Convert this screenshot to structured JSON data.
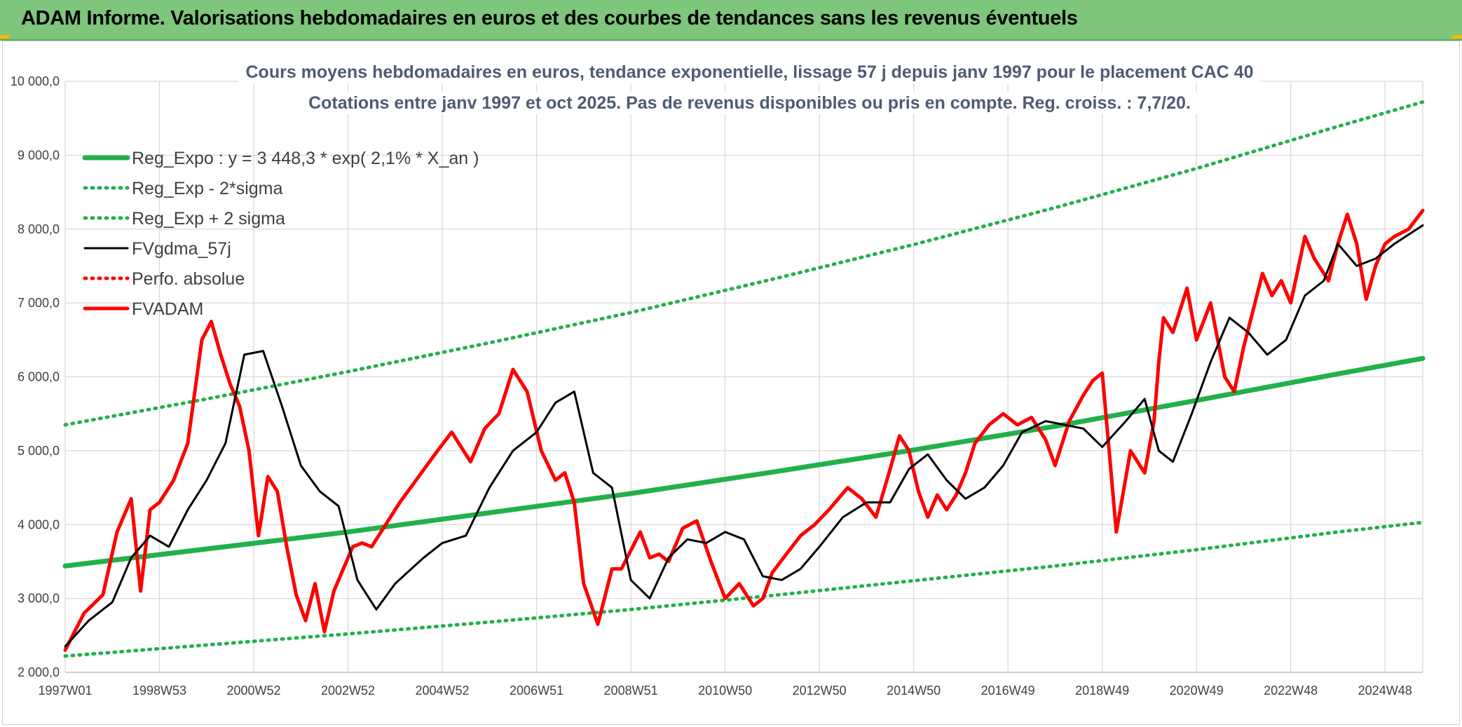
{
  "banner": {
    "title": "ADAM Informe. Valorisations hebdomadaires en euros et des courbes de tendances sans les revenus éventuels",
    "background": "#7dc67b"
  },
  "chart_data": {
    "type": "line",
    "title": "Cours moyens hebdomadaires en euros, tendance exponentielle, lissage 57 j depuis janv 1997 pour le placement CAC 40",
    "subtitle": "Cotations entre janv 1997 et oct 2025. Pas de revenus disponibles ou pris en compte. Reg. croiss. : 7,7/20.",
    "xlabel": "",
    "ylabel": "",
    "ylim": [
      2000,
      10000
    ],
    "yticks": [
      2000,
      3000,
      4000,
      5000,
      6000,
      7000,
      8000,
      9000,
      10000
    ],
    "ytick_labels": [
      "2 000,0",
      "3 000,0",
      "4 000,0",
      "5 000,0",
      "6 000,0",
      "7 000,0",
      "8 000,0",
      "9 000,0",
      "10 000,0"
    ],
    "xlim": [
      1997.0,
      2025.8
    ],
    "xtick_labels": [
      "1997W01",
      "1998W53",
      "2000W52",
      "2002W52",
      "2004W52",
      "2006W51",
      "2008W51",
      "2010W50",
      "2012W50",
      "2014W50",
      "2016W49",
      "2018W49",
      "2020W49",
      "2022W48",
      "2024W48"
    ],
    "xtick_positions": [
      1997.0,
      1999.0,
      2001.0,
      2003.0,
      2005.0,
      2007.0,
      2009.0,
      2011.0,
      2013.0,
      2015.0,
      2017.0,
      2019.0,
      2021.0,
      2023.0,
      2025.0
    ],
    "grid": true,
    "legend_placement": "top-left",
    "series": [
      {
        "name": "Reg_Expo : y = 3 448,3 * exp( 2,1% *  X_an )",
        "color": "#22b04b",
        "style": "solid-thick",
        "x": [
          1997.0,
          2000.0,
          2003.0,
          2006.0,
          2009.0,
          2012.0,
          2015.0,
          2018.0,
          2021.0,
          2024.0,
          2025.8
        ],
        "values": [
          3440,
          3670,
          3900,
          4160,
          4420,
          4710,
          5010,
          5330,
          5680,
          6040,
          6250
        ]
      },
      {
        "name": "Reg_Exp - 2*sigma",
        "color": "#22b04b",
        "style": "dotted",
        "x": [
          1997.0,
          2000.0,
          2003.0,
          2006.0,
          2009.0,
          2012.0,
          2015.0,
          2018.0,
          2021.0,
          2024.0,
          2025.8
        ],
        "values": [
          2220,
          2370,
          2520,
          2680,
          2850,
          3040,
          3240,
          3440,
          3660,
          3900,
          4030
        ]
      },
      {
        "name": "Reg_Exp + 2 sigma",
        "color": "#22b04b",
        "style": "dotted",
        "x": [
          1997.0,
          2000.0,
          2003.0,
          2006.0,
          2009.0,
          2012.0,
          2015.0,
          2018.0,
          2021.0,
          2024.0,
          2025.8
        ],
        "values": [
          5350,
          5700,
          6070,
          6460,
          6870,
          7320,
          7790,
          8290,
          8820,
          9390,
          9720
        ]
      },
      {
        "name": "FVgdma_57j",
        "color": "#000000",
        "style": "solid",
        "x": [
          1997.0,
          1997.5,
          1998.0,
          1998.4,
          1998.8,
          1999.2,
          1999.6,
          2000.0,
          2000.4,
          2000.8,
          2001.2,
          2001.6,
          2002.0,
          2002.4,
          2002.8,
          2003.2,
          2003.6,
          2004.0,
          2004.6,
          2005.0,
          2005.5,
          2006.0,
          2006.5,
          2007.0,
          2007.4,
          2007.8,
          2008.2,
          2008.6,
          2009.0,
          2009.4,
          2009.8,
          2010.2,
          2010.6,
          2011.0,
          2011.4,
          2011.8,
          2012.2,
          2012.6,
          2013.0,
          2013.5,
          2014.0,
          2014.5,
          2014.9,
          2015.3,
          2015.7,
          2016.1,
          2016.5,
          2016.9,
          2017.3,
          2017.8,
          2018.2,
          2018.6,
          2019.0,
          2019.5,
          2019.9,
          2020.2,
          2020.5,
          2020.9,
          2021.3,
          2021.7,
          2022.1,
          2022.5,
          2022.9,
          2023.3,
          2023.7,
          2024.0,
          2024.4,
          2024.8,
          2025.2,
          2025.8
        ],
        "values": [
          2350,
          2700,
          2950,
          3550,
          3850,
          3700,
          4200,
          4600,
          5100,
          6300,
          6350,
          5600,
          4800,
          4450,
          4250,
          3250,
          2850,
          3200,
          3550,
          3750,
          3850,
          4500,
          5000,
          5250,
          5650,
          5800,
          4700,
          4500,
          3250,
          3000,
          3550,
          3800,
          3750,
          3900,
          3800,
          3300,
          3250,
          3400,
          3700,
          4100,
          4300,
          4300,
          4750,
          4950,
          4600,
          4350,
          4500,
          4800,
          5250,
          5400,
          5350,
          5300,
          5050,
          5400,
          5700,
          5000,
          4850,
          5500,
          6200,
          6800,
          6600,
          6300,
          6500,
          7100,
          7300,
          7800,
          7500,
          7600,
          7800,
          8050
        ]
      },
      {
        "name": "Perfo. absolue",
        "color": "#ff0000",
        "style": "dotted",
        "x": [],
        "values": []
      },
      {
        "name": "FVADAM",
        "color": "#ff0000",
        "style": "solid-thick",
        "x": [
          1997.0,
          1997.4,
          1997.8,
          1998.1,
          1998.4,
          1998.6,
          1998.8,
          1999.0,
          1999.3,
          1999.6,
          1999.9,
          2000.1,
          2000.3,
          2000.5,
          2000.7,
          2000.9,
          2001.1,
          2001.3,
          2001.5,
          2001.7,
          2001.9,
          2002.1,
          2002.3,
          2002.5,
          2002.7,
          2002.9,
          2003.1,
          2003.3,
          2003.5,
          2003.8,
          2004.1,
          2004.5,
          2004.9,
          2005.2,
          2005.6,
          2005.9,
          2006.2,
          2006.5,
          2006.8,
          2007.1,
          2007.4,
          2007.6,
          2007.8,
          2008.0,
          2008.3,
          2008.6,
          2008.8,
          2009.0,
          2009.2,
          2009.4,
          2009.6,
          2009.8,
          2010.1,
          2010.4,
          2010.7,
          2011.0,
          2011.3,
          2011.6,
          2011.8,
          2012.0,
          2012.3,
          2012.6,
          2012.9,
          2013.2,
          2013.6,
          2013.9,
          2014.2,
          2014.5,
          2014.7,
          2014.9,
          2015.1,
          2015.3,
          2015.5,
          2015.7,
          2015.9,
          2016.1,
          2016.3,
          2016.6,
          2016.9,
          2017.2,
          2017.5,
          2017.8,
          2018.0,
          2018.3,
          2018.6,
          2018.8,
          2019.0,
          2019.3,
          2019.6,
          2019.9,
          2020.1,
          2020.2,
          2020.3,
          2020.5,
          2020.8,
          2021.0,
          2021.3,
          2021.6,
          2021.8,
          2022.0,
          2022.2,
          2022.4,
          2022.6,
          2022.8,
          2023.0,
          2023.3,
          2023.5,
          2023.8,
          2024.0,
          2024.2,
          2024.4,
          2024.6,
          2024.8,
          2025.0,
          2025.2,
          2025.5,
          2025.8
        ],
        "values": [
          2300,
          2800,
          3050,
          3900,
          4350,
          3100,
          4200,
          4300,
          4600,
          5100,
          6500,
          6750,
          6300,
          5900,
          5600,
          5000,
          3850,
          4650,
          4450,
          3700,
          3050,
          2700,
          3200,
          2550,
          3100,
          3400,
          3700,
          3750,
          3700,
          4000,
          4300,
          4650,
          5000,
          5250,
          4850,
          5300,
          5500,
          6100,
          5800,
          5000,
          4600,
          4700,
          4300,
          3200,
          2650,
          3400,
          3400,
          3650,
          3900,
          3550,
          3600,
          3500,
          3950,
          4050,
          3500,
          3000,
          3200,
          2900,
          3000,
          3350,
          3600,
          3850,
          4000,
          4200,
          4500,
          4350,
          4100,
          4750,
          5200,
          5000,
          4450,
          4100,
          4400,
          4200,
          4400,
          4700,
          5100,
          5350,
          5500,
          5350,
          5450,
          5150,
          4800,
          5400,
          5750,
          5950,
          6050,
          3900,
          5000,
          4700,
          5400,
          6200,
          6800,
          6600,
          7200,
          6500,
          7000,
          6000,
          5800,
          6400,
          6900,
          7400,
          7100,
          7300,
          7000,
          7900,
          7600,
          7300,
          7800,
          8200,
          7800,
          7050,
          7500,
          7800,
          7900,
          8000,
          8250
        ]
      }
    ]
  }
}
